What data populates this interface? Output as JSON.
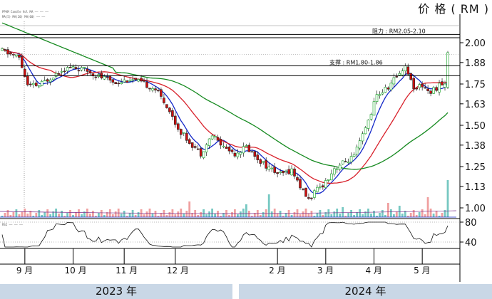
{
  "header": {
    "currency_title": "价 格 ( RM )",
    "legend_lines": [
      "PPAM  Candle  Vol  MA  ——  ——  ——",
      "MA(5) MA(20) MA(60)  ——  ——",
      "RSI  ——  ——  ——"
    ]
  },
  "years": [
    "2023 年",
    "2024 年"
  ],
  "chart_data": {
    "type": "candlestick",
    "title": "价 格 ( RM )",
    "price_axis": {
      "ticks": [
        1.0,
        1.13,
        1.25,
        1.38,
        1.5,
        1.63,
        1.75,
        1.88,
        2.0
      ],
      "tick_labels": [
        "1.00",
        "1.13",
        "1.25",
        "1.38",
        "1.50",
        "1.63",
        "1.75",
        "1.88",
        "2.00"
      ],
      "range": [
        0.98,
        2.03
      ]
    },
    "rsi_axis": {
      "ticks": [
        40,
        80
      ],
      "tick_labels": [
        "40",
        "80"
      ],
      "range": [
        25,
        85
      ]
    },
    "x_axis": {
      "month_labels": [
        "9 月",
        "10 月",
        "11 月",
        "12 月",
        "2 月",
        "3 月",
        "4 月",
        "5 月"
      ],
      "month_start_index": [
        8,
        25,
        43,
        61,
        97,
        114,
        131,
        148
      ],
      "total_bars": 158
    },
    "annotations": [
      {
        "text": "阻力 : RM2.05-2.10",
        "price": 2.05,
        "price2": 2.03
      },
      {
        "text": "支撑 : RM1.80-1.86",
        "price": 1.86,
        "price2": 1.8
      }
    ],
    "dotted_reference_price": 1.93,
    "moving_averages": [
      {
        "color": "#1428c8"
      },
      {
        "color": "#d8202a"
      },
      {
        "color": "#168a20"
      }
    ],
    "up_color": "#10a020",
    "down_color": "#cc1010",
    "vol_up_color": "#76c8c2",
    "vol_down_color": "#f0a0a0"
  }
}
